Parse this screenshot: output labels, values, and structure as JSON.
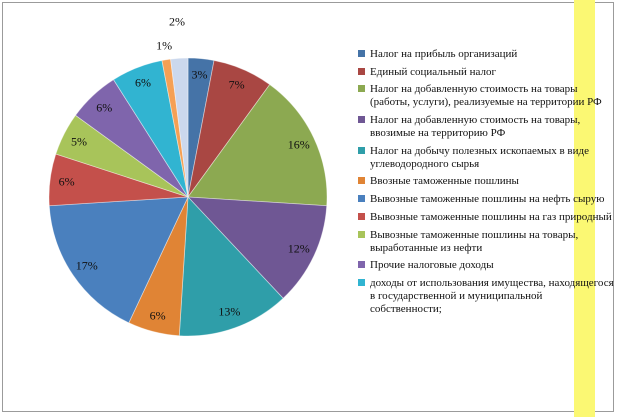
{
  "frame": {
    "border_color": "#9b9b9b",
    "background": "#ffffff"
  },
  "highlight_stripe": {
    "color": "#fbf873"
  },
  "chart_data": {
    "type": "pie",
    "title": "",
    "legend_position": "right",
    "value_unit": "%",
    "slices": [
      {
        "legend_label": "Налог на прибыль организаций",
        "value": 3,
        "data_label": "3%",
        "color": "#4573A7",
        "in_legend": true
      },
      {
        "legend_label": "Единый социальный налог",
        "value": 7,
        "data_label": "7%",
        "color": "#A94743",
        "in_legend": true
      },
      {
        "legend_label": "Налог на добавленную стоимость на товары (работы, услуги), реализуемые на территории РФ",
        "value": 16,
        "data_label": "16%",
        "color": "#8CA951",
        "in_legend": true
      },
      {
        "legend_label": "Налог на добавленную стоимость на товары, ввозимые на территорию РФ",
        "value": 12,
        "data_label": "12%",
        "color": "#6F5794",
        "in_legend": true
      },
      {
        "legend_label": "Налог на добычу полезных ископаемых в виде углеводородного сырья",
        "value": 13,
        "data_label": "13%",
        "color": "#2F9EA9",
        "in_legend": true
      },
      {
        "legend_label": "Ввозные таможенные пошлины",
        "value": 6,
        "data_label": "6%",
        "color": "#E08435",
        "in_legend": true
      },
      {
        "legend_label": "Вывозные таможенные пошлины на нефть сырую",
        "value": 17,
        "data_label": "17%",
        "color": "#4A80BE",
        "in_legend": true
      },
      {
        "legend_label": "Вывозные таможенные пошлины на газ природный",
        "value": 6,
        "data_label": "6%",
        "color": "#C4504B",
        "in_legend": true
      },
      {
        "legend_label": "Вывозные таможенные пошлины на товары, выработанные из нефти",
        "value": 5,
        "data_label": "5%",
        "color": "#A8C45A",
        "in_legend": true
      },
      {
        "legend_label": "Прочие налоговые доходы",
        "value": 6,
        "data_label": "6%",
        "color": "#7F65AC",
        "in_legend": true
      },
      {
        "legend_label": "доходы от использования имущества, находящегося в государственной и муниципальной собственности;",
        "value": 6,
        "data_label": "6%",
        "color": "#31B4D1",
        "in_legend": true
      },
      {
        "legend_label": "",
        "value": 1,
        "data_label": "1%",
        "color": "#F5A054",
        "in_legend": false
      },
      {
        "legend_label": "",
        "value": 2,
        "data_label": "2%",
        "color": "#CBD8ED",
        "in_legend": false
      }
    ]
  }
}
